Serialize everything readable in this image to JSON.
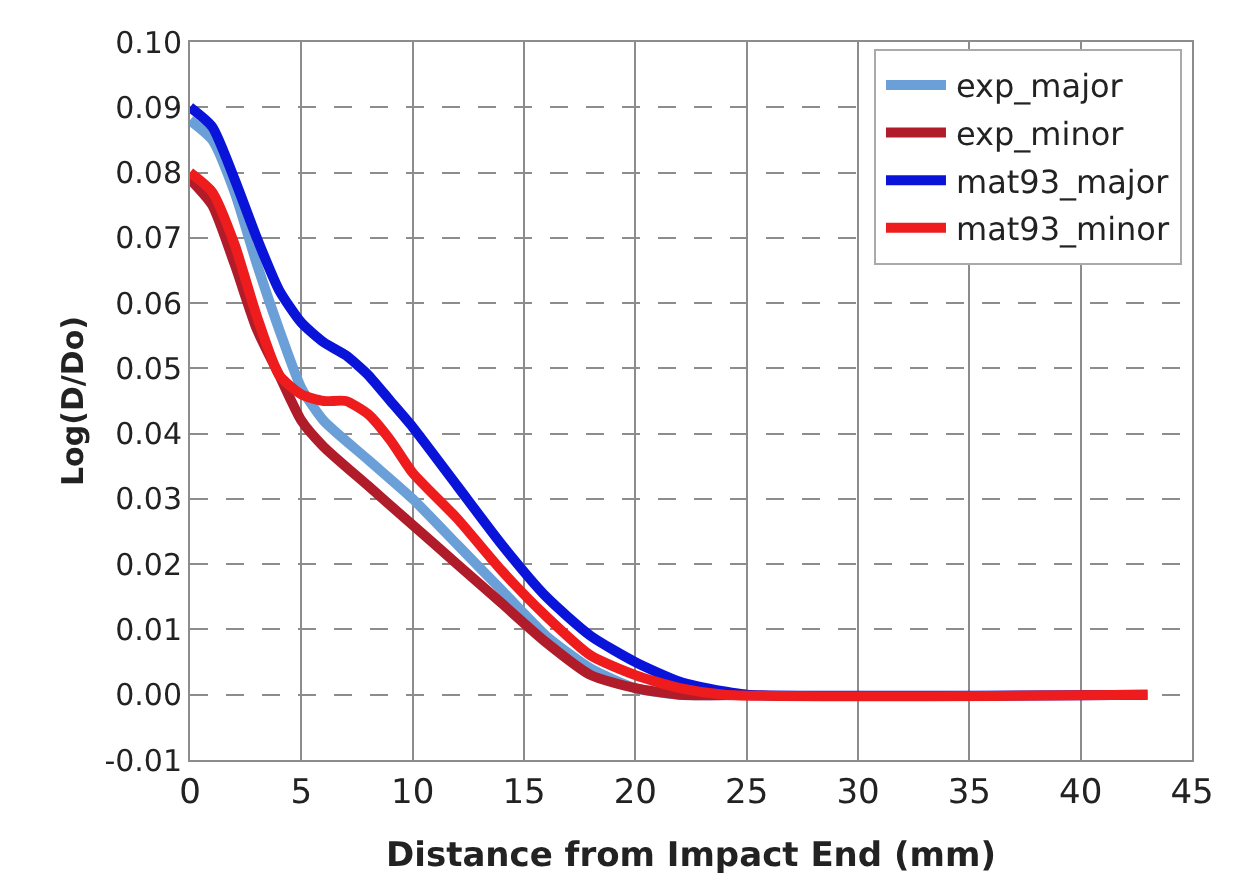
{
  "chart_data": {
    "type": "line",
    "xlabel": "Distance from Impact End (mm)",
    "ylabel": "Log(D/Do)",
    "xlim": [
      0,
      45
    ],
    "xticks": [
      0,
      5,
      10,
      15,
      20,
      25,
      30,
      35,
      40,
      45
    ],
    "ylim": [
      -0.01,
      0.1
    ],
    "yticks": [
      {
        "value": -0.01,
        "label": "-0.01"
      },
      {
        "value": 0,
        "label": "0.00"
      },
      {
        "value": 0.01,
        "label": "0.01"
      },
      {
        "value": 0.02,
        "label": "0.02"
      },
      {
        "value": 0.03,
        "label": "0.03"
      },
      {
        "value": 0.04,
        "label": "0.04"
      },
      {
        "value": 0.05,
        "label": "0.05"
      },
      {
        "value": 0.06,
        "label": "0.06"
      },
      {
        "value": 0.07,
        "label": "0.07"
      },
      {
        "value": 0.08,
        "label": "0.08"
      },
      {
        "value": 0.09,
        "label": "0.09"
      },
      {
        "value": 0.1,
        "label": "0.10"
      }
    ],
    "grid": true,
    "legend": "top right",
    "marker": "none",
    "line_style": "solid",
    "series": [
      {
        "name": "exp_major",
        "color": "#6a9fd8",
        "x": [
          0,
          1,
          2,
          3,
          4,
          5,
          6,
          8,
          10,
          12,
          14,
          16,
          18,
          20,
          22,
          25
        ],
        "values": [
          0.088,
          0.085,
          0.077,
          0.066,
          0.056,
          0.047,
          0.042,
          0.036,
          0.03,
          0.023,
          0.016,
          0.009,
          0.004,
          0.001,
          0.0,
          0.0
        ]
      },
      {
        "name": "exp_minor",
        "color": "#b01c2a",
        "x": [
          0,
          1,
          2,
          3,
          4,
          5,
          6,
          8,
          10,
          12,
          14,
          16,
          18,
          20,
          22,
          25
        ],
        "values": [
          0.079,
          0.075,
          0.066,
          0.056,
          0.049,
          0.042,
          0.038,
          0.032,
          0.026,
          0.02,
          0.014,
          0.008,
          0.003,
          0.001,
          0.0,
          0.0
        ]
      },
      {
        "name": "mat93_major",
        "color": "#0a14d8",
        "x": [
          0,
          1,
          2,
          3,
          4,
          5,
          6,
          7,
          8,
          9,
          10,
          12,
          14,
          16,
          18,
          20,
          22,
          24,
          25,
          43
        ],
        "values": [
          0.09,
          0.087,
          0.079,
          0.07,
          0.062,
          0.057,
          0.054,
          0.052,
          0.049,
          0.045,
          0.041,
          0.032,
          0.023,
          0.015,
          0.009,
          0.005,
          0.002,
          0.0005,
          0.0,
          0.0
        ]
      },
      {
        "name": "mat93_minor",
        "color": "#ee1c1c",
        "x": [
          0,
          1,
          2,
          3,
          4,
          5,
          6,
          7,
          8,
          9,
          10,
          12,
          14,
          16,
          18,
          20,
          22,
          24,
          43
        ],
        "values": [
          0.08,
          0.077,
          0.069,
          0.058,
          0.049,
          0.046,
          0.045,
          0.045,
          0.043,
          0.039,
          0.034,
          0.027,
          0.019,
          0.012,
          0.006,
          0.003,
          0.001,
          0.0,
          0.0
        ]
      }
    ]
  }
}
